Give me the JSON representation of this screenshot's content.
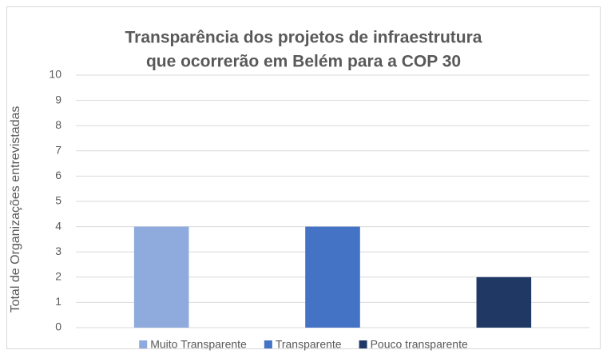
{
  "chart_data": {
    "type": "bar",
    "title": [
      "Transparência dos projetos de infraestrutura",
      "que ocorrerão em Belém para a COP 30"
    ],
    "y_label": "Total de Organizações entrevistadas",
    "categories": [
      null,
      null,
      null
    ],
    "series": [
      {
        "name": "Muito Transparente",
        "color": "#8faadc",
        "values": [
          4,
          null,
          null
        ]
      },
      {
        "name": "Transparente",
        "color": "#4472c4",
        "values": [
          null,
          4,
          null
        ]
      },
      {
        "name": "Pouco transparente",
        "color": "#203864",
        "values": [
          null,
          null,
          2
        ]
      }
    ],
    "ylim": [
      0,
      10
    ],
    "yticks": [
      0,
      1,
      2,
      3,
      4,
      5,
      6,
      7,
      8,
      9,
      10
    ],
    "grid": true,
    "legend": "bottom"
  }
}
